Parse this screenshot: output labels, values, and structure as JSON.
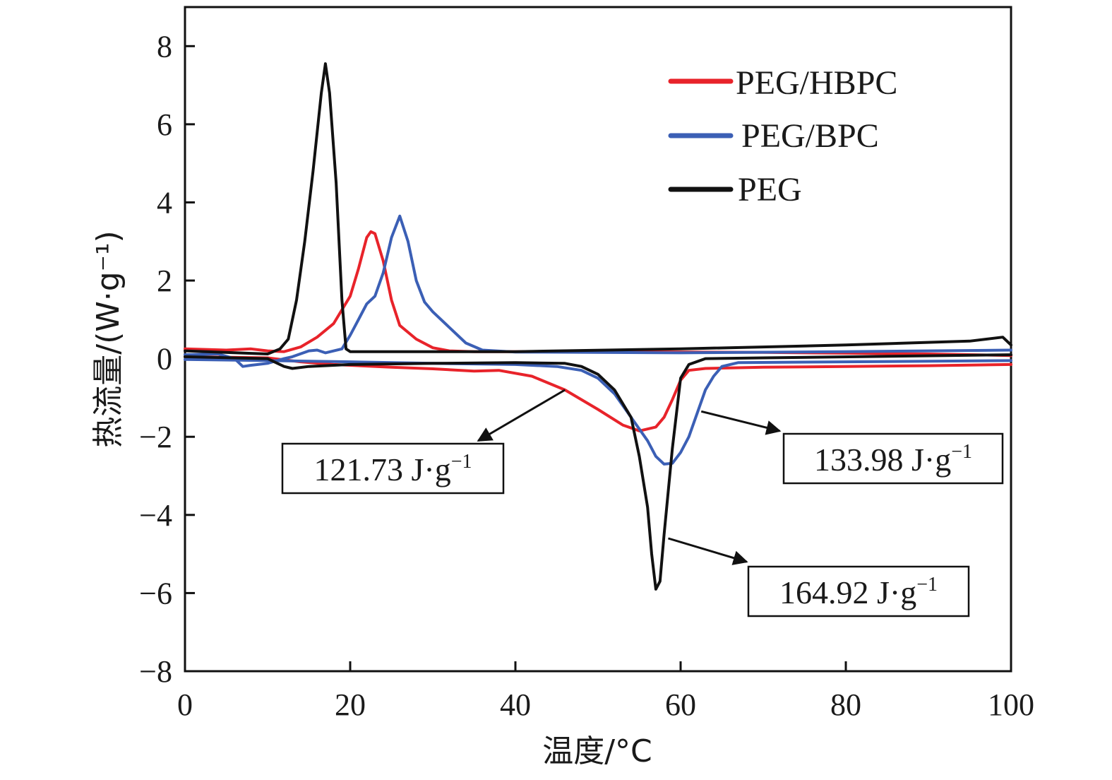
{
  "chart_data": {
    "type": "line",
    "title": "",
    "xlabel": "温度/°C",
    "ylabel": "热流量/(W·g⁻¹)",
    "xlim": [
      0,
      100
    ],
    "ylim": [
      -8,
      9
    ],
    "xticks": [
      0,
      20,
      40,
      60,
      80,
      100
    ],
    "xtick_labels": [
      "0",
      "20",
      "40",
      "60",
      "80",
      "100"
    ],
    "yticks": [
      -8,
      -6,
      -4,
      -2,
      0,
      2,
      4,
      6,
      8
    ],
    "ytick_labels": [
      "−8",
      "−6",
      "−4",
      "−2",
      "0",
      "2",
      "4",
      "6",
      "8"
    ],
    "grid": false,
    "legend_position": "top-right",
    "series": [
      {
        "name": "PEG/HBPC",
        "color": "#e8232a",
        "segments": [
          [
            [
              0,
              0.25
            ],
            [
              5,
              0.22
            ],
            [
              8,
              0.25
            ],
            [
              10,
              0.2
            ],
            [
              12,
              0.18
            ],
            [
              14,
              0.3
            ],
            [
              16,
              0.55
            ],
            [
              18,
              0.9
            ],
            [
              20,
              1.6
            ],
            [
              21,
              2.3
            ],
            [
              22,
              3.1
            ],
            [
              22.5,
              3.25
            ],
            [
              23,
              3.2
            ],
            [
              24,
              2.5
            ],
            [
              25,
              1.5
            ],
            [
              26,
              0.85
            ],
            [
              28,
              0.5
            ],
            [
              30,
              0.28
            ],
            [
              32,
              0.2
            ],
            [
              35,
              0.18
            ],
            [
              50,
              0.18
            ],
            [
              70,
              0.16
            ],
            [
              90,
              0.12
            ],
            [
              100,
              0.08
            ]
          ],
          [
            [
              0,
              0.05
            ],
            [
              10,
              0.02
            ],
            [
              14,
              -0.08
            ],
            [
              18,
              -0.15
            ],
            [
              25,
              -0.22
            ],
            [
              30,
              -0.26
            ],
            [
              35,
              -0.32
            ],
            [
              38,
              -0.3
            ],
            [
              42,
              -0.45
            ],
            [
              46,
              -0.8
            ],
            [
              50,
              -1.3
            ],
            [
              53,
              -1.7
            ],
            [
              55,
              -1.85
            ],
            [
              57,
              -1.75
            ],
            [
              58,
              -1.5
            ],
            [
              59,
              -1.05
            ],
            [
              60,
              -0.55
            ],
            [
              61,
              -0.3
            ],
            [
              63,
              -0.25
            ],
            [
              70,
              -0.22
            ],
            [
              80,
              -0.2
            ],
            [
              90,
              -0.18
            ],
            [
              100,
              -0.15
            ]
          ]
        ]
      },
      {
        "name": "PEG/BPC",
        "color": "#3b5fb5",
        "segments": [
          [
            [
              0,
              0.1
            ],
            [
              4,
              0.12
            ],
            [
              6,
              0.0
            ],
            [
              7,
              -0.2
            ],
            [
              8,
              -0.17
            ],
            [
              10,
              -0.12
            ],
            [
              12,
              0.0
            ],
            [
              13,
              0.05
            ],
            [
              15,
              0.2
            ],
            [
              16,
              0.22
            ],
            [
              17,
              0.15
            ],
            [
              19,
              0.25
            ],
            [
              20,
              0.6
            ],
            [
              21,
              1.0
            ],
            [
              22,
              1.4
            ],
            [
              23,
              1.6
            ],
            [
              24,
              2.2
            ],
            [
              25,
              3.1
            ],
            [
              26,
              3.65
            ],
            [
              27,
              3.0
            ],
            [
              28,
              2.0
            ],
            [
              29,
              1.45
            ],
            [
              30,
              1.2
            ],
            [
              32,
              0.8
            ],
            [
              34,
              0.4
            ],
            [
              36,
              0.22
            ],
            [
              40,
              0.17
            ],
            [
              60,
              0.15
            ],
            [
              80,
              0.18
            ],
            [
              100,
              0.22
            ]
          ],
          [
            [
              0,
              -0.02
            ],
            [
              10,
              -0.05
            ],
            [
              20,
              -0.08
            ],
            [
              30,
              -0.12
            ],
            [
              40,
              -0.15
            ],
            [
              45,
              -0.2
            ],
            [
              48,
              -0.3
            ],
            [
              50,
              -0.5
            ],
            [
              52,
              -0.9
            ],
            [
              54,
              -1.5
            ],
            [
              56,
              -2.1
            ],
            [
              57,
              -2.5
            ],
            [
              58,
              -2.7
            ],
            [
              59,
              -2.68
            ],
            [
              60,
              -2.4
            ],
            [
              61,
              -2.0
            ],
            [
              62,
              -1.4
            ],
            [
              63,
              -0.8
            ],
            [
              64,
              -0.45
            ],
            [
              65,
              -0.2
            ],
            [
              67,
              -0.1
            ],
            [
              80,
              -0.08
            ],
            [
              100,
              -0.05
            ]
          ]
        ]
      },
      {
        "name": "PEG",
        "color": "#111111",
        "segments": [
          [
            [
              0,
              0.2
            ],
            [
              10,
              0.12
            ],
            [
              11.5,
              0.25
            ],
            [
              12.5,
              0.5
            ],
            [
              13.5,
              1.5
            ],
            [
              14.5,
              3.0
            ],
            [
              15.5,
              4.8
            ],
            [
              16.5,
              6.8
            ],
            [
              17,
              7.55
            ],
            [
              17.5,
              6.8
            ],
            [
              18.3,
              4.5
            ],
            [
              19,
              1.5
            ],
            [
              19.5,
              0.25
            ],
            [
              20,
              0.18
            ],
            [
              40,
              0.18
            ],
            [
              60,
              0.25
            ],
            [
              80,
              0.35
            ],
            [
              95,
              0.45
            ],
            [
              99,
              0.55
            ],
            [
              100,
              0.35
            ]
          ],
          [
            [
              0,
              0.05
            ],
            [
              10,
              0.0
            ],
            [
              11,
              -0.1
            ],
            [
              12,
              -0.2
            ],
            [
              13,
              -0.25
            ],
            [
              15,
              -0.2
            ],
            [
              20,
              -0.15
            ],
            [
              30,
              -0.12
            ],
            [
              40,
              -0.1
            ],
            [
              46,
              -0.12
            ],
            [
              48,
              -0.2
            ],
            [
              50,
              -0.4
            ],
            [
              52,
              -0.8
            ],
            [
              54,
              -1.5
            ],
            [
              55,
              -2.5
            ],
            [
              56,
              -3.8
            ],
            [
              56.5,
              -5.0
            ],
            [
              57,
              -5.9
            ],
            [
              57.5,
              -5.7
            ],
            [
              58,
              -4.5
            ],
            [
              59,
              -2.3
            ],
            [
              60,
              -0.5
            ],
            [
              61,
              -0.15
            ],
            [
              63,
              0.0
            ],
            [
              70,
              0.02
            ],
            [
              100,
              0.1
            ]
          ]
        ]
      }
    ],
    "annotations": [
      {
        "id": "anno-hbpc",
        "value": "121.73",
        "unit": "J·g",
        "sup": "−1",
        "from": [
          46,
          -0.8
        ],
        "to": [
          35.5,
          -2.1
        ]
      },
      {
        "id": "anno-bpc",
        "value": "133.98",
        "unit": "J·g",
        "sup": "−1",
        "from": [
          62.5,
          -1.35
        ],
        "to": [
          72,
          -1.85
        ]
      },
      {
        "id": "anno-peg",
        "value": "164.92",
        "unit": "J·g",
        "sup": "−1",
        "from": [
          58.5,
          -4.6
        ],
        "to": [
          68,
          -5.2
        ]
      }
    ]
  }
}
